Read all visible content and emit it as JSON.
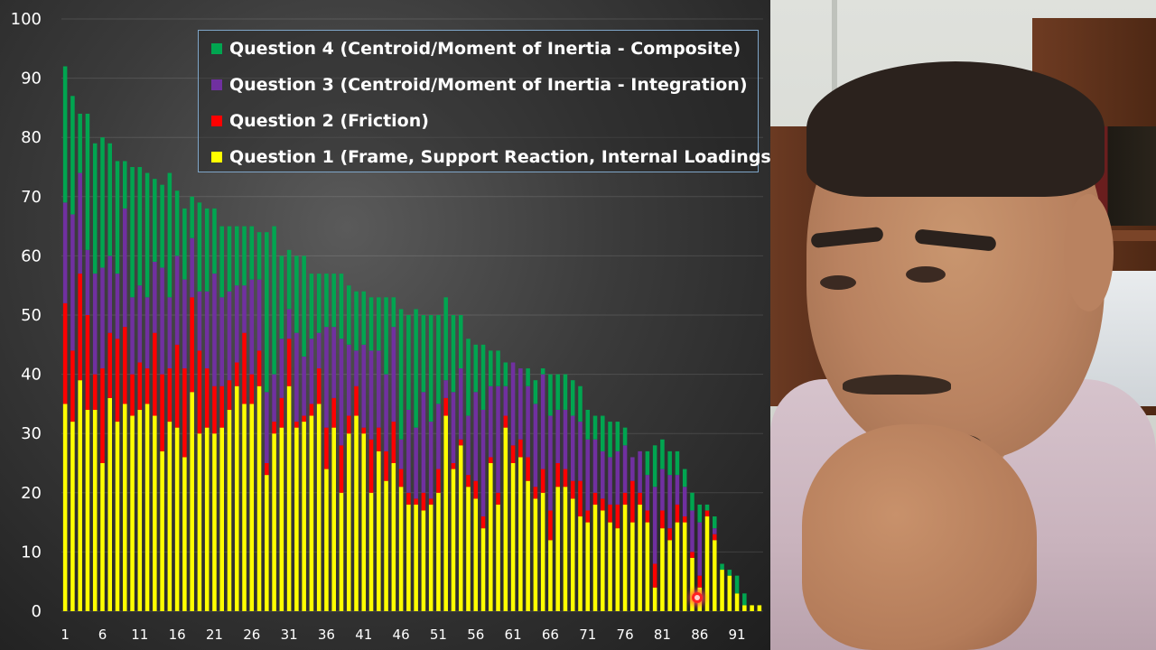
{
  "chart_data": {
    "type": "bar",
    "stacked": true,
    "x": [
      1,
      2,
      3,
      4,
      5,
      6,
      7,
      8,
      9,
      10,
      11,
      12,
      13,
      14,
      15,
      16,
      17,
      18,
      19,
      20,
      21,
      22,
      23,
      24,
      25,
      26,
      27,
      28,
      29,
      30,
      31,
      32,
      33,
      34,
      35,
      36,
      37,
      38,
      39,
      40,
      41,
      42,
      43,
      44,
      45,
      46,
      47,
      48,
      49,
      50,
      51,
      52,
      53,
      54,
      55,
      56,
      57,
      58,
      59,
      60,
      61,
      62,
      63,
      64,
      65,
      66,
      67,
      68,
      69,
      70,
      71,
      72,
      73,
      74,
      75,
      76,
      77,
      78,
      79,
      80,
      81,
      82,
      83,
      84,
      85,
      86,
      87,
      88,
      89,
      90,
      91,
      92,
      93,
      94
    ],
    "x_tick_labels": [
      "1",
      "6",
      "11",
      "16",
      "21",
      "26",
      "31",
      "36",
      "41",
      "46",
      "51",
      "56",
      "61",
      "66",
      "71",
      "76",
      "81",
      "86",
      "91"
    ],
    "y_tick_labels": [
      "0",
      "10",
      "20",
      "30",
      "40",
      "50",
      "60",
      "70",
      "80",
      "90",
      "100"
    ],
    "ylim": [
      0,
      100
    ],
    "grid": true,
    "legend_position": "top-right",
    "series": [
      {
        "name": "Question 1 (Frame, Support Reaction, Internal Loadings)",
        "color": "#ffff00",
        "values": [
          35,
          32,
          39,
          34,
          34,
          25,
          36,
          32,
          35,
          33,
          34,
          35,
          33,
          27,
          32,
          31,
          26,
          37,
          30,
          31,
          30,
          31,
          34,
          38,
          35,
          35,
          38,
          23,
          30,
          31,
          38,
          31,
          32,
          33,
          35,
          24,
          31,
          20,
          30,
          33,
          30,
          20,
          27,
          22,
          25,
          21,
          18,
          18,
          17,
          18,
          20,
          33,
          24,
          28,
          21,
          19,
          14,
          25,
          18,
          31,
          25,
          26,
          22,
          19,
          20,
          12,
          21,
          21,
          19,
          16,
          15,
          18,
          17,
          15,
          14,
          18,
          15,
          18,
          15,
          4,
          14,
          12,
          15,
          15,
          9,
          4,
          16,
          12,
          7,
          6,
          3,
          1,
          1,
          1
        ]
      },
      {
        "name": "Question 2 (Friction)",
        "color": "#ff0000",
        "values": [
          17,
          12,
          18,
          16,
          6,
          16,
          11,
          14,
          13,
          7,
          8,
          6,
          14,
          13,
          9,
          14,
          15,
          16,
          14,
          10,
          8,
          7,
          5,
          4,
          12,
          5,
          6,
          2,
          2,
          5,
          8,
          1,
          1,
          2,
          6,
          7,
          5,
          8,
          3,
          5,
          1,
          9,
          4,
          5,
          7,
          3,
          2,
          1,
          3,
          1,
          4,
          3,
          1,
          1,
          2,
          3,
          2,
          1,
          2,
          2,
          3,
          3,
          4,
          2,
          4,
          5,
          4,
          3,
          3,
          6,
          2,
          2,
          2,
          3,
          4,
          2,
          7,
          2,
          2,
          4,
          3,
          2,
          3,
          1,
          1,
          2,
          1,
          1,
          0,
          0,
          0,
          0,
          0,
          0
        ]
      },
      {
        "name": "Question 3 (Centroid/Moment of Inertia - Integration)",
        "color": "#7030a0",
        "values": [
          17,
          23,
          17,
          11,
          17,
          17,
          13,
          11,
          20,
          13,
          13,
          12,
          12,
          18,
          12,
          15,
          15,
          10,
          10,
          13,
          19,
          15,
          15,
          13,
          8,
          16,
          12,
          12,
          8,
          10,
          5,
          15,
          10,
          11,
          6,
          17,
          12,
          18,
          12,
          6,
          14,
          15,
          13,
          13,
          16,
          5,
          14,
          12,
          17,
          13,
          11,
          3,
          12,
          12,
          10,
          15,
          18,
          12,
          18,
          5,
          14,
          12,
          12,
          14,
          16,
          16,
          9,
          10,
          11,
          10,
          12,
          9,
          8,
          8,
          9,
          8,
          4,
          7,
          6,
          13,
          7,
          9,
          5,
          5,
          7,
          9,
          0,
          1,
          0,
          0,
          0,
          0,
          0,
          0
        ]
      },
      {
        "name": "Question 4 (Centroid/Moment of Inertia - Composite)",
        "color": "#00a550",
        "values": [
          23,
          20,
          10,
          23,
          22,
          22,
          19,
          19,
          8,
          22,
          20,
          21,
          14,
          14,
          21,
          11,
          12,
          7,
          15,
          14,
          11,
          12,
          11,
          10,
          10,
          9,
          8,
          27,
          25,
          14,
          10,
          13,
          17,
          11,
          10,
          9,
          9,
          11,
          10,
          10,
          9,
          9,
          9,
          13,
          5,
          22,
          16,
          20,
          13,
          18,
          15,
          14,
          13,
          9,
          13,
          8,
          11,
          6,
          6,
          4,
          0,
          0,
          3,
          4,
          1,
          7,
          6,
          6,
          6,
          6,
          5,
          4,
          6,
          6,
          5,
          3,
          0,
          0,
          4,
          7,
          5,
          4,
          4,
          3,
          3,
          3,
          1,
          2,
          1,
          1,
          3,
          2,
          0,
          0
        ]
      }
    ]
  }
}
